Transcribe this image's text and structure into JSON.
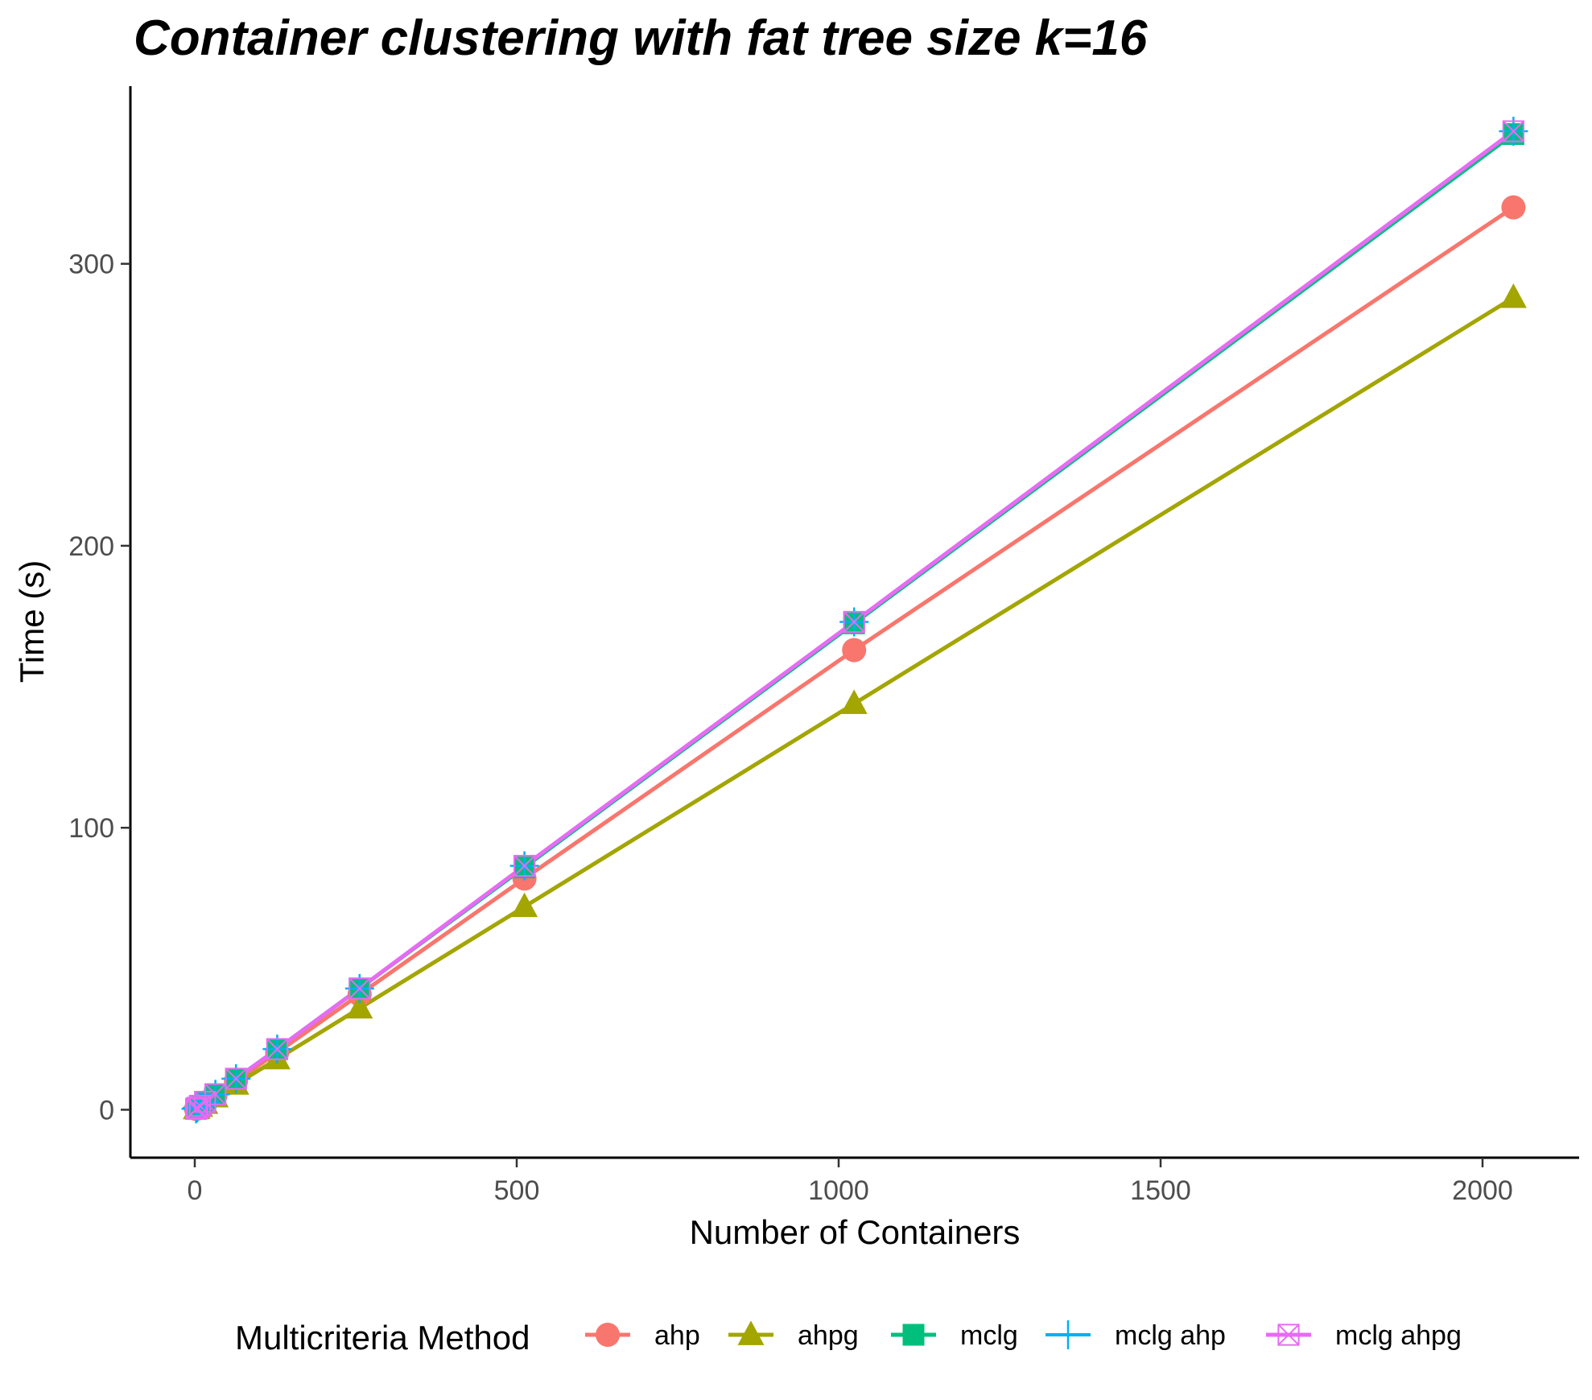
{
  "chart_data": {
    "type": "line",
    "title": "Container clustering with fat tree size k=16",
    "xlabel": "Number of Containers",
    "ylabel": "Time (s)",
    "xlim": [
      -100,
      2150
    ],
    "ylim": [
      -17,
      363
    ],
    "x_ticks": [
      0,
      500,
      1000,
      1500,
      2000
    ],
    "y_ticks": [
      0,
      100,
      200,
      300
    ],
    "grid": false,
    "legend": {
      "title": "Multicriteria Method",
      "position": "bottom"
    },
    "x": [
      2,
      4,
      8,
      16,
      32,
      64,
      128,
      256,
      512,
      1024,
      2048
    ],
    "series": [
      {
        "name": "ahp",
        "color": "#F8766D",
        "marker": "circle",
        "values": [
          0.3,
          0.6,
          1.3,
          2.6,
          5.1,
          10.2,
          20.3,
          40.9,
          82.0,
          163.0,
          320.0
        ]
      },
      {
        "name": "ahpg",
        "color": "#A3A500",
        "marker": "triangle",
        "values": [
          0.3,
          0.5,
          1.1,
          2.2,
          4.5,
          9.0,
          18.0,
          36.0,
          72.0,
          144.0,
          288.0
        ]
      },
      {
        "name": "mclg",
        "color": "#00BF7D",
        "marker": "square",
        "values": [
          0.3,
          0.7,
          1.4,
          2.8,
          5.5,
          11.0,
          21.5,
          43.0,
          86.0,
          172.5,
          346.0
        ]
      },
      {
        "name": "mclg ahp",
        "color": "#00B0F6",
        "marker": "plus",
        "values": [
          0.3,
          0.7,
          1.4,
          2.8,
          5.5,
          11.0,
          21.5,
          43.0,
          86.5,
          173.0,
          347.0
        ]
      },
      {
        "name": "mclg ahpg",
        "color": "#E76BF3",
        "marker": "boxx",
        "values": [
          0.3,
          0.7,
          1.4,
          2.8,
          5.5,
          11.0,
          21.5,
          43.0,
          86.5,
          173.0,
          347.0
        ]
      }
    ]
  }
}
